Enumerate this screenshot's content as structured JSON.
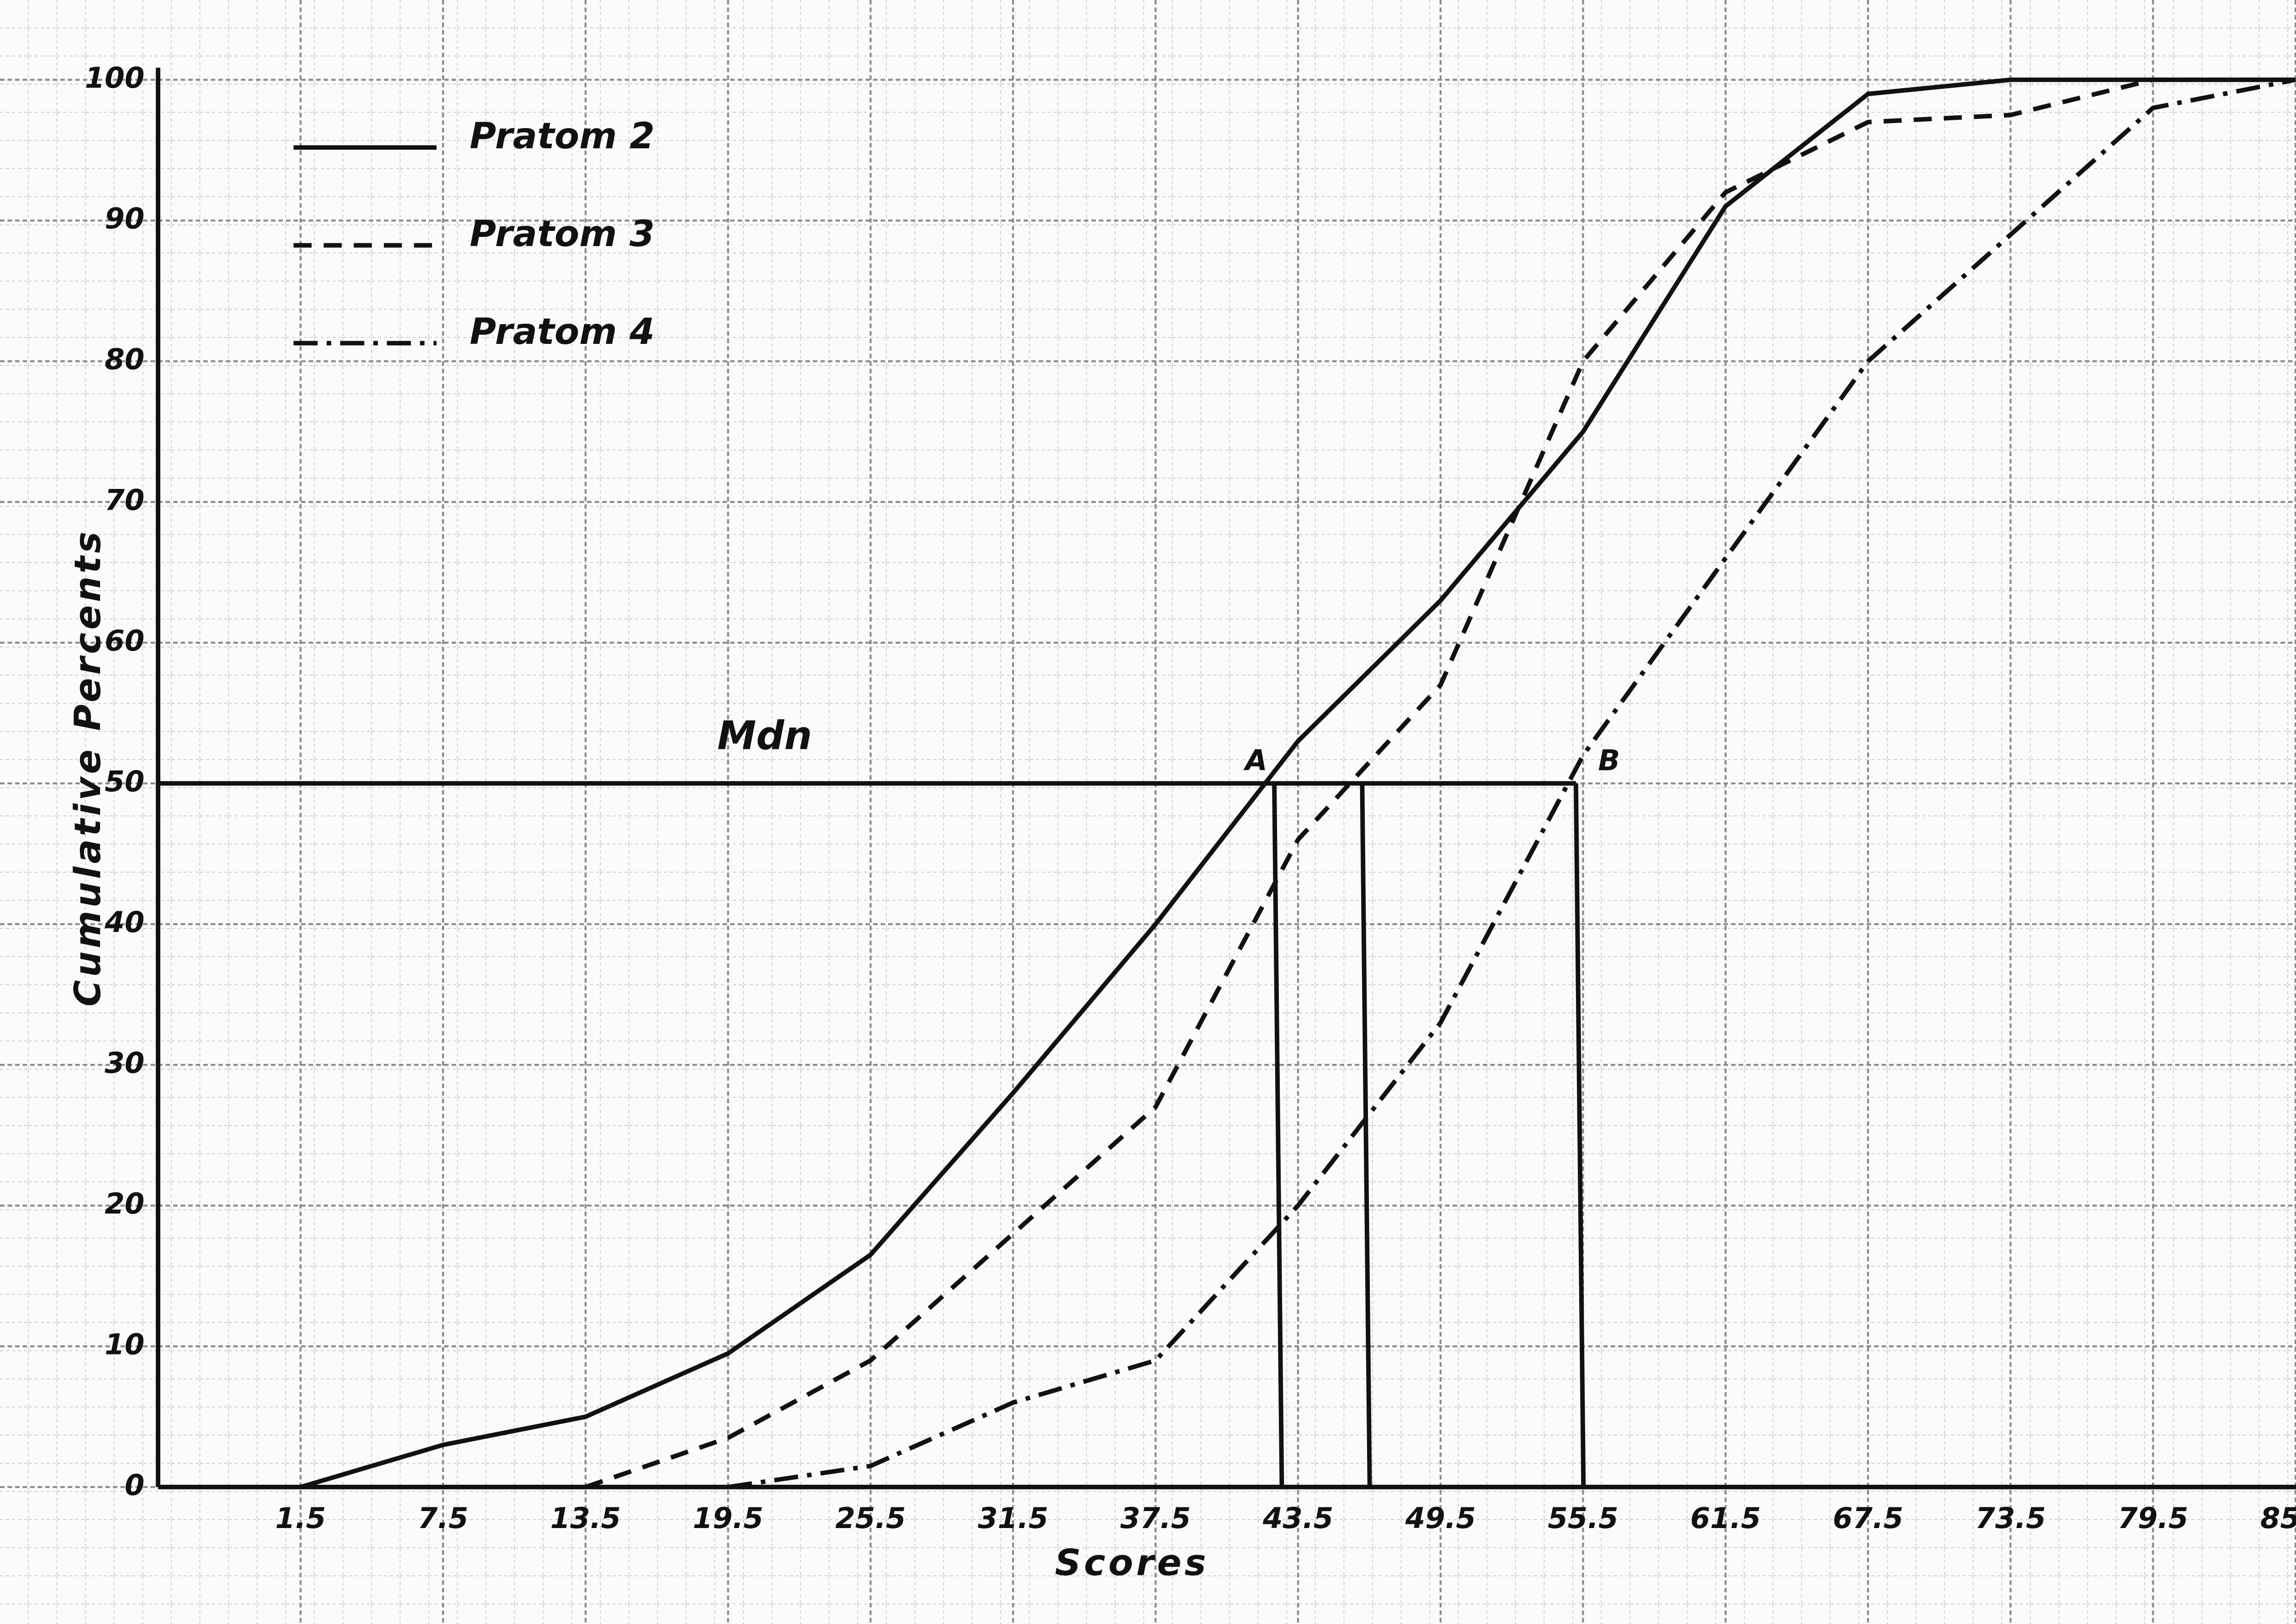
{
  "chart_data": {
    "type": "line",
    "xlabel": "Scores",
    "ylabel": "Cumulative Percents",
    "x": [
      1.5,
      7.5,
      13.5,
      19.5,
      25.5,
      31.5,
      37.5,
      43.5,
      49.5,
      55.5,
      61.5,
      67.5,
      73.5,
      79.5,
      85.5
    ],
    "series": [
      {
        "name": "Pratom 2",
        "color": "#111111",
        "dash": "solid",
        "values": [
          0,
          3,
          5,
          9.5,
          16.5,
          28,
          40,
          53,
          63,
          75,
          91,
          99,
          100,
          100,
          100
        ]
      },
      {
        "name": "Pratom 3",
        "color": "#111111",
        "dash": "dashed",
        "values": [
          null,
          null,
          0,
          3.5,
          9,
          18,
          27,
          46,
          57,
          80,
          92,
          97,
          97.5,
          100,
          100
        ]
      },
      {
        "name": "Pratom 4",
        "color": "#111111",
        "dash": "dashdot",
        "values": [
          null,
          null,
          null,
          0,
          1.5,
          6,
          9,
          20,
          33,
          52,
          66,
          80,
          89,
          98,
          100
        ]
      }
    ],
    "xlim": [
      -4.5,
      85.5
    ],
    "ylim": [
      0,
      100
    ],
    "xticks": [
      1.5,
      7.5,
      13.5,
      19.5,
      25.5,
      31.5,
      37.5,
      43.5,
      49.5,
      55.5,
      61.5,
      67.5,
      73.5,
      79.5,
      85.5
    ],
    "yticks": [
      0,
      10,
      20,
      30,
      40,
      50,
      60,
      70,
      80,
      90,
      100
    ],
    "grid": true,
    "legend": "upper left",
    "median": {
      "label": "Mdn",
      "value": 50
    },
    "median_points": [
      {
        "label": "A",
        "x": 42.5
      },
      {
        "x": 46.2
      },
      {
        "label": "B",
        "x": 55.2
      }
    ]
  }
}
